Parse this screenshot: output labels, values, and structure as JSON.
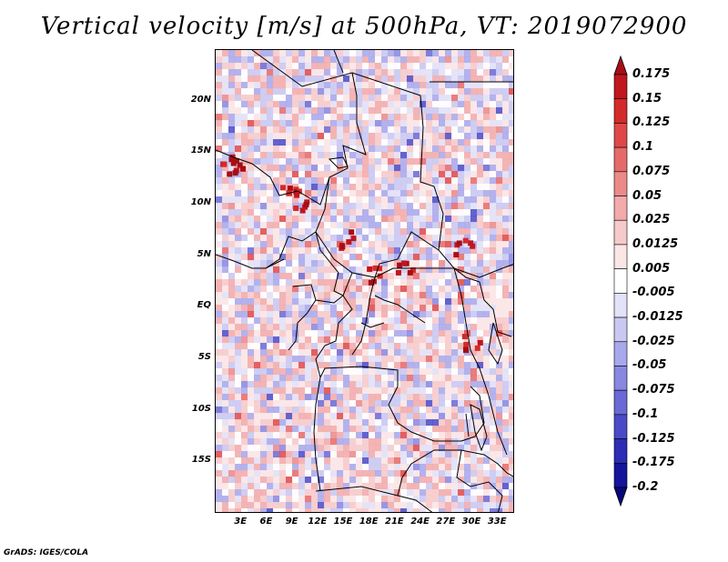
{
  "title": "Vertical velocity [m/s] at 500hPa, VT: 2019072900",
  "footer": "GrADS: IGES/COLA",
  "map": {
    "lat_labels": [
      "20N",
      "15N",
      "10N",
      "5N",
      "EQ",
      "5S",
      "10S",
      "15S"
    ],
    "lat_values": [
      20,
      15,
      10,
      5,
      0,
      -5,
      -10,
      -15
    ],
    "lon_labels": [
      "3E",
      "6E",
      "9E",
      "12E",
      "15E",
      "18E",
      "21E",
      "24E",
      "27E",
      "30E",
      "33E"
    ],
    "lon_values": [
      3,
      6,
      9,
      12,
      15,
      18,
      21,
      24,
      27,
      30,
      33
    ],
    "lon_range": [
      0,
      35
    ],
    "lat_range": [
      -20,
      25
    ],
    "field": "vertical velocity at 500hPa",
    "units": "m/s"
  },
  "colorbar": {
    "levels": [
      "0.175",
      "0.15",
      "0.125",
      "0.1",
      "0.075",
      "0.05",
      "0.025",
      "0.0125",
      "0.005",
      "-0.005",
      "-0.0125",
      "-0.025",
      "-0.05",
      "-0.075",
      "-0.1",
      "-0.125",
      "-0.175",
      "-0.2"
    ],
    "colors": [
      "#a50f15",
      "#c0161d",
      "#d32a2a",
      "#e04848",
      "#e66a6a",
      "#ec8a8a",
      "#f2aaaa",
      "#f7caca",
      "#fbe6e6",
      "#ffffff",
      "#e2e2f8",
      "#c8c8f2",
      "#a8a8ec",
      "#8888e2",
      "#6a6ad6",
      "#4a4ac8",
      "#2c2cb6",
      "#14149c",
      "#08087a"
    ]
  }
}
